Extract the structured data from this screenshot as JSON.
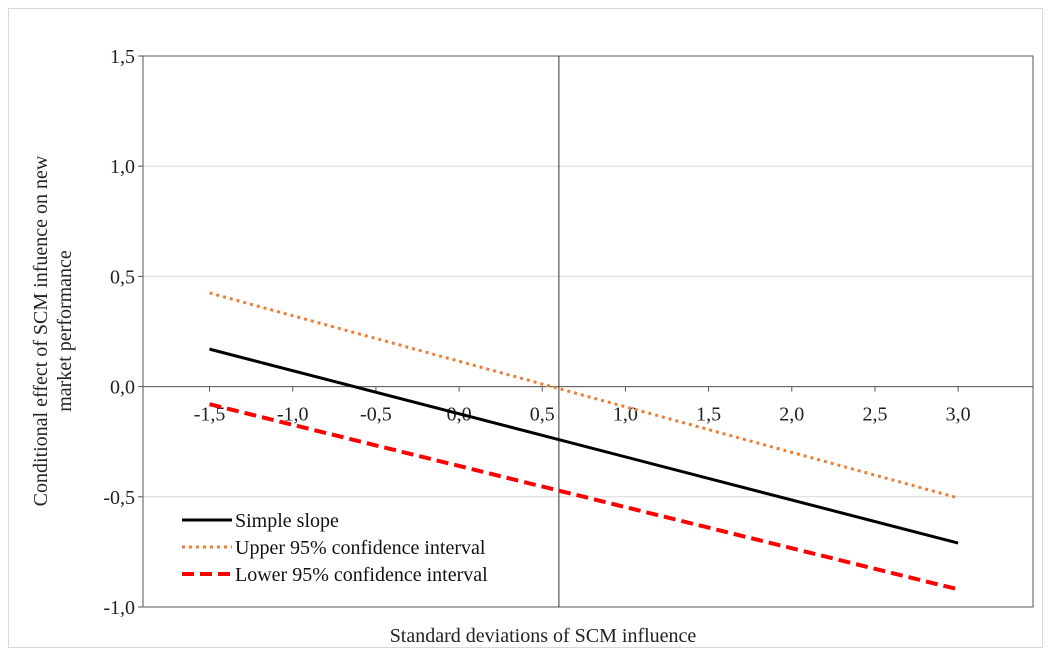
{
  "chart_data": {
    "type": "line",
    "xlabel": "Standard deviations of SCM influence",
    "ylabel_line1": "Conditional  effect  of SCM infuence on new",
    "ylabel_line2": "market performance",
    "xlim": [
      -1.9,
      3.45
    ],
    "ylim": [
      -1.0,
      1.5
    ],
    "x_ticks": [
      -1.5,
      -1.0,
      -0.5,
      0.0,
      0.5,
      1.0,
      1.5,
      2.0,
      2.5,
      3.0
    ],
    "x_tick_labels": [
      "-1,5",
      "-1,0",
      "-0,5",
      "0,0",
      "0,5",
      "1,0",
      "1,5",
      "2,0",
      "2,5",
      "3,0"
    ],
    "y_ticks": [
      -1.0,
      -0.5,
      0.0,
      0.5,
      1.0,
      1.5
    ],
    "y_tick_labels": [
      "-1,0",
      "-0,5",
      "0,0",
      "0,5",
      "1,0",
      "1,5"
    ],
    "vline_x": 0.6,
    "grid": "horizontal",
    "legend_position": "bottom-left",
    "series": [
      {
        "name": "Simple slope",
        "x": [
          -1.5,
          3.0
        ],
        "y": [
          0.17,
          -0.71
        ],
        "color": "#000000",
        "style": "solid"
      },
      {
        "name": "Upper 95% confidence interval",
        "x": [
          -1.5,
          3.0
        ],
        "y": [
          0.425,
          -0.505
        ],
        "color": "#ED7D31",
        "style": "dotted"
      },
      {
        "name": "Lower 95% confidence interval",
        "x": [
          -1.5,
          3.0
        ],
        "y": [
          -0.08,
          -0.92
        ],
        "color": "#FF0000",
        "style": "dashed"
      }
    ]
  }
}
